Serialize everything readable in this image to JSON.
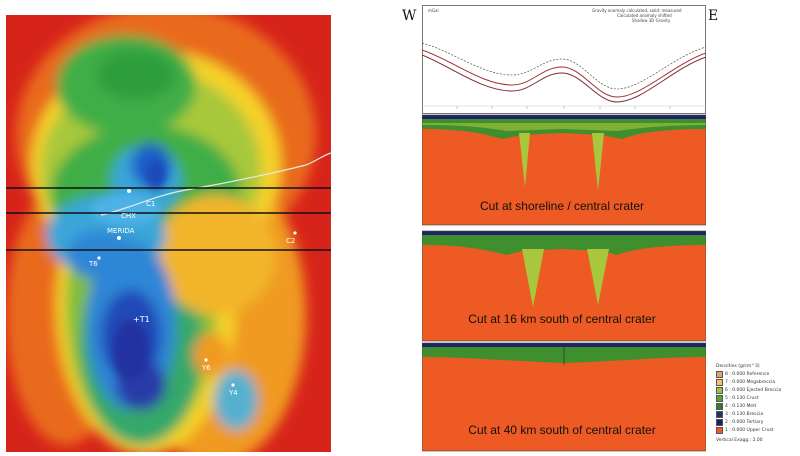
{
  "map": {
    "labels": {
      "c1": "C1",
      "c2": "C2",
      "chicxulub": "CHX",
      "merida": "MERIDA",
      "t6": "T6",
      "t1": "+T1",
      "ya1": "Y4",
      "y6": "Y6"
    }
  },
  "profile": {
    "west_label": "W",
    "east_label": "E",
    "gravity_header": "mGal",
    "gravity_legend": [
      "Gravity anomaly calculated, solid: measured",
      "Calculated anomaly shifted",
      "Shallow 3D Gravity"
    ],
    "cuts": [
      "Cut at shoreline / central crater",
      "Cut at 16 km south of central crater",
      "Cut at 40 km south of central crater"
    ]
  },
  "legend": {
    "title": "Densities (g/cm^3)",
    "entries": [
      {
        "label": "8 : 0.000 Reference",
        "color": "#e8a070"
      },
      {
        "label": "7 : 0.000 Megabreccia",
        "color": "#f2c36a"
      },
      {
        "label": "6 : 0.000 Ejected Breccia",
        "color": "#9cc43a"
      },
      {
        "label": "5 : 0.130 Crust",
        "color": "#5aa12f"
      },
      {
        "label": "4 : 0.130 Melt",
        "color": "#2f7f2a"
      },
      {
        "label": "3 : 0.130 Breccia",
        "color": "#27306e"
      },
      {
        "label": "2 : 0.000 Tertiary",
        "color": "#1b1f5a"
      },
      {
        "label": "1 : 0.000 Upper Crust",
        "color": "#ee5a23"
      }
    ],
    "footer": "Vertical Exagg.: 2.00"
  },
  "colors": {
    "orange": "#ee5a23",
    "green": "#3f8f2f",
    "lightgreen": "#a9c73c",
    "navy": "#1f2466"
  }
}
